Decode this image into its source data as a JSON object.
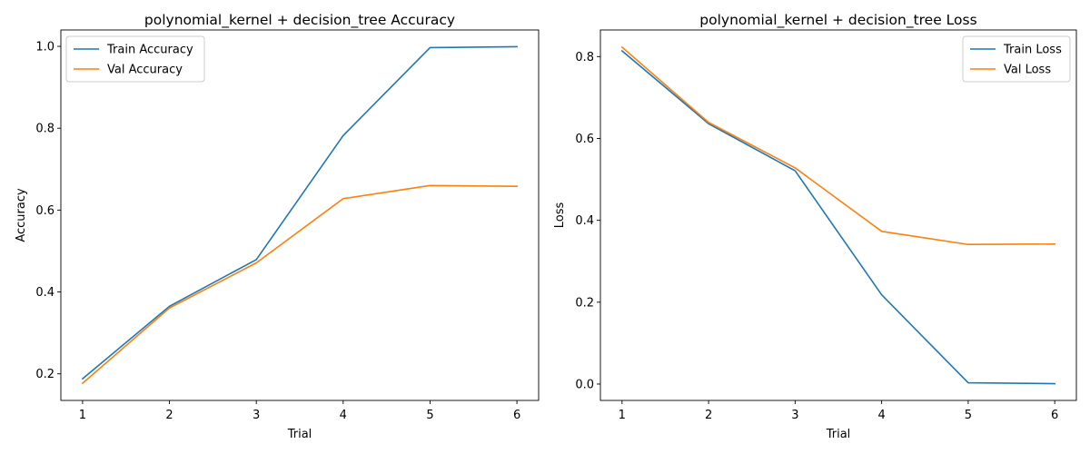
{
  "colors": {
    "train": "#1f77b4",
    "val": "#ff7f0e"
  },
  "chart_data": [
    {
      "type": "line",
      "title": "polynomial_kernel + decision_tree Accuracy",
      "xlabel": "Trial",
      "ylabel": "Accuracy",
      "x": [
        1,
        2,
        3,
        4,
        5,
        6
      ],
      "xticks": [
        "1",
        "2",
        "3",
        "4",
        "5",
        "6"
      ],
      "yticks": [
        "0.2",
        "0.4",
        "0.6",
        "0.8",
        "1.0"
      ],
      "ylim": [
        0.135,
        1.04
      ],
      "legend": "upper-left",
      "series": [
        {
          "name": "Train Accuracy",
          "color": "#1f77b4",
          "values": [
            0.188,
            0.365,
            0.479,
            0.782,
            0.997,
            0.999
          ]
        },
        {
          "name": "Val Accuracy",
          "color": "#ff7f0e",
          "values": [
            0.177,
            0.361,
            0.471,
            0.628,
            0.66,
            0.658
          ]
        }
      ]
    },
    {
      "type": "line",
      "title": "polynomial_kernel + decision_tree Loss",
      "xlabel": "Trial",
      "ylabel": "Loss",
      "x": [
        1,
        2,
        3,
        4,
        5,
        6
      ],
      "xticks": [
        "1",
        "2",
        "3",
        "4",
        "5",
        "6"
      ],
      "yticks": [
        "0.0",
        "0.2",
        "0.4",
        "0.6",
        "0.8"
      ],
      "ylim": [
        -0.04,
        0.865
      ],
      "legend": "upper-right",
      "series": [
        {
          "name": "Train Loss",
          "color": "#1f77b4",
          "values": [
            0.814,
            0.636,
            0.521,
            0.218,
            0.003,
            0.001
          ]
        },
        {
          "name": "Val Loss",
          "color": "#ff7f0e",
          "values": [
            0.823,
            0.639,
            0.528,
            0.373,
            0.341,
            0.342
          ]
        }
      ]
    }
  ]
}
